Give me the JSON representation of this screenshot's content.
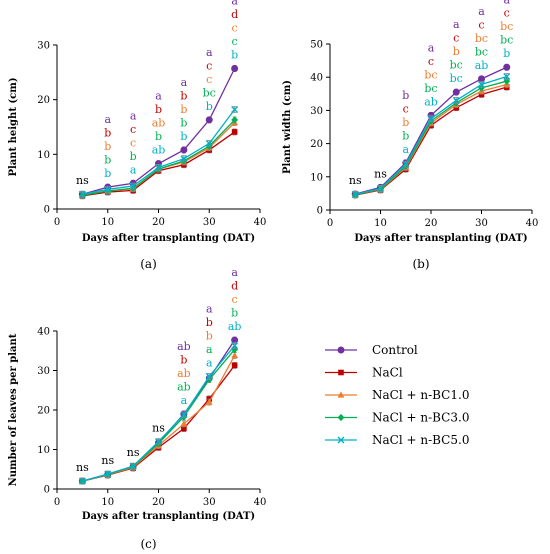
{
  "colors": {
    "Control": "#7030a0",
    "NaCl": "#c00000",
    "NaCl + n-BC1.0": "#ed7d31",
    "NaCl + n-BC3.0": "#00b050",
    "NaCl + n-BC5.0": "#00b0c8"
  },
  "legend": {
    "entries": [
      "Control",
      "NaCl",
      "NaCl + n-BC1.0",
      "NaCl + n-BC3.0",
      "NaCl + n-BC5.0"
    ]
  },
  "chart_data": [
    {
      "type": "line",
      "panel_label": "(a)",
      "ylabel": "Plant height (cm)",
      "xlabel": "Days after transplanting (DAT)",
      "xlim": [
        0,
        40
      ],
      "ylim": [
        0,
        30
      ],
      "xticks": [
        0,
        10,
        20,
        30,
        40
      ],
      "yticks": [
        0,
        10,
        20,
        30
      ],
      "x": [
        5,
        10,
        15,
        20,
        25,
        30,
        35
      ],
      "series": [
        {
          "name": "Control",
          "values": [
            2.7,
            4.0,
            4.7,
            8.3,
            10.8,
            16.3,
            25.7
          ]
        },
        {
          "name": "NaCl",
          "values": [
            2.4,
            3.1,
            3.4,
            7.0,
            8.1,
            10.8,
            14.1
          ]
        },
        {
          "name": "NaCl + n-BC1.0",
          "values": [
            2.6,
            3.3,
            3.7,
            7.3,
            8.6,
            11.2,
            15.8
          ]
        },
        {
          "name": "NaCl + n-BC3.0",
          "values": [
            2.5,
            3.3,
            3.8,
            7.3,
            8.8,
            11.5,
            16.3
          ]
        },
        {
          "name": "NaCl + n-BC5.0",
          "values": [
            2.7,
            3.6,
            4.2,
            7.6,
            9.2,
            12.0,
            18.2
          ]
        }
      ],
      "significance": [
        {
          "x": 5,
          "labels": [
            "ns"
          ]
        },
        {
          "x": 10,
          "labels": [
            "a",
            "b",
            "b",
            "b",
            "b"
          ]
        },
        {
          "x": 15,
          "labels": [
            "a",
            "c",
            "c",
            "b",
            "a"
          ]
        },
        {
          "x": 20,
          "labels": [
            "a",
            "b",
            "ab",
            "b",
            "ab"
          ]
        },
        {
          "x": 25,
          "labels": [
            "a",
            "b",
            "b",
            "b",
            "b"
          ]
        },
        {
          "x": 30,
          "labels": [
            "a",
            "c",
            "c",
            "bc",
            "b"
          ]
        },
        {
          "x": 35,
          "labels": [
            "a",
            "d",
            "c",
            "c",
            "b"
          ]
        }
      ]
    },
    {
      "type": "line",
      "panel_label": "(b)",
      "ylabel": "Plant width (cm)",
      "xlabel": "Days after transplanting (DAT)",
      "xlim": [
        0,
        40
      ],
      "ylim": [
        0,
        50
      ],
      "xticks": [
        0,
        10,
        20,
        30,
        40
      ],
      "yticks": [
        0,
        10,
        20,
        30,
        40,
        50
      ],
      "x": [
        5,
        10,
        15,
        20,
        25,
        30,
        35
      ],
      "series": [
        {
          "name": "Control",
          "values": [
            4.8,
            6.8,
            14.2,
            28.5,
            35.5,
            39.5,
            43.0
          ]
        },
        {
          "name": "NaCl",
          "values": [
            4.5,
            6.0,
            12.3,
            25.5,
            30.8,
            34.8,
            37.0
          ]
        },
        {
          "name": "NaCl + n-BC1.0",
          "values": [
            4.6,
            6.2,
            12.8,
            26.2,
            31.8,
            35.8,
            37.8
          ]
        },
        {
          "name": "NaCl + n-BC3.0",
          "values": [
            4.6,
            6.3,
            13.2,
            26.8,
            32.3,
            36.8,
            38.8
          ]
        },
        {
          "name": "NaCl + n-BC5.0",
          "values": [
            4.7,
            6.5,
            13.8,
            27.5,
            33.0,
            37.8,
            40.2
          ]
        }
      ],
      "significance": [
        {
          "x": 5,
          "labels": [
            "ns"
          ]
        },
        {
          "x": 10,
          "labels": [
            "ns"
          ]
        },
        {
          "x": 15,
          "labels": [
            "b",
            "c",
            "b",
            "b",
            "a"
          ]
        },
        {
          "x": 20,
          "labels": [
            "a",
            "c",
            "bc",
            "bc",
            "ab"
          ]
        },
        {
          "x": 25,
          "labels": [
            "a",
            "c",
            "b",
            "bc",
            "bc"
          ]
        },
        {
          "x": 30,
          "labels": [
            "a",
            "c",
            "bc",
            "bc",
            "ab"
          ]
        },
        {
          "x": 35,
          "labels": [
            "a",
            "c",
            "bc",
            "bc",
            "b"
          ]
        }
      ]
    },
    {
      "type": "line",
      "panel_label": "(c)",
      "ylabel": "Number of leaves per plant",
      "xlabel": "Days after transplanting (DAT)",
      "xlim": [
        0,
        40
      ],
      "ylim": [
        0,
        40
      ],
      "xticks": [
        0,
        10,
        20,
        30,
        40
      ],
      "yticks": [
        0,
        10,
        20,
        30,
        40
      ],
      "x": [
        5,
        10,
        15,
        20,
        25,
        30,
        35
      ],
      "series": [
        {
          "name": "Control",
          "values": [
            2.0,
            3.7,
            5.7,
            11.7,
            19.0,
            28.0,
            37.7
          ]
        },
        {
          "name": "NaCl",
          "values": [
            2.0,
            3.5,
            5.3,
            10.5,
            15.3,
            22.8,
            31.3
          ]
        },
        {
          "name": "NaCl + n-BC1.0",
          "values": [
            2.0,
            3.6,
            5.5,
            11.0,
            16.5,
            22.0,
            33.8
          ]
        },
        {
          "name": "NaCl + n-BC3.0",
          "values": [
            2.0,
            3.7,
            5.7,
            11.5,
            18.3,
            27.7,
            35.3
          ]
        },
        {
          "name": "NaCl + n-BC5.0",
          "values": [
            2.0,
            3.8,
            5.8,
            12.0,
            18.8,
            28.5,
            36.3
          ]
        }
      ],
      "significance": [
        {
          "x": 5,
          "labels": [
            "ns"
          ]
        },
        {
          "x": 10,
          "labels": [
            "ns"
          ]
        },
        {
          "x": 15,
          "labels": [
            "ns"
          ]
        },
        {
          "x": 20,
          "labels": [
            "ns"
          ]
        },
        {
          "x": 25,
          "labels": [
            "ab",
            "b",
            "ab",
            "ab",
            "a"
          ]
        },
        {
          "x": 30,
          "labels": [
            "a",
            "b",
            "b",
            "a",
            "a"
          ]
        },
        {
          "x": 35,
          "labels": [
            "a",
            "d",
            "c",
            "b",
            "ab"
          ]
        }
      ]
    }
  ]
}
